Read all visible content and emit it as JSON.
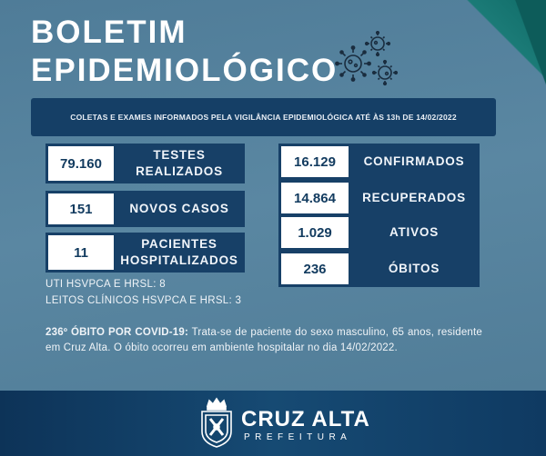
{
  "header": {
    "title_line1": "BOLETIM",
    "title_line2": "EPIDEMIOLÓGICO",
    "icon": "virus-icon"
  },
  "banner": {
    "text": "COLETAS E EXAMES INFORMADOS PELA VIGILÂNCIA EPIDEMIOLÓGICA ATÉ ÀS 13h DE 14/02/2022"
  },
  "left_stats": [
    {
      "value": "79.160",
      "label1": "TESTES",
      "label2": "REALIZADOS"
    },
    {
      "value": "151",
      "label1": "NOVOS CASOS",
      "label2": ""
    },
    {
      "value": "11",
      "label1": "PACIENTES",
      "label2": "HOSPITALIZADOS"
    }
  ],
  "right_stats": [
    {
      "value": "16.129",
      "label": "CONFIRMADOS"
    },
    {
      "value": "14.864",
      "label": "RECUPERADOS"
    },
    {
      "value": "1.029",
      "label": "ATIVOS"
    },
    {
      "value": "236",
      "label": "ÓBITOS"
    }
  ],
  "hospital_info": {
    "line1": "UTI HSVPCA E HRSL: 8",
    "line2": "LEITOS CLÍNICOS HSVPCA E HRSL: 3"
  },
  "death_note": {
    "lead": "236º ÓBITO POR COVID-19:",
    "text": " Trata-se de paciente do sexo masculino, 65 anos, residente em Cruz Alta. O óbito ocorreu em ambiente hospitalar no dia 14/02/2022."
  },
  "footer": {
    "brand_name": "CRUZ ALTA",
    "brand_sub": "PREFEITURA",
    "icon": "city-seal-icon"
  },
  "colors": {
    "background": "#557f9b",
    "panel": "#174067",
    "footer": "#123f68",
    "accent_teal": "#1b7b77"
  }
}
